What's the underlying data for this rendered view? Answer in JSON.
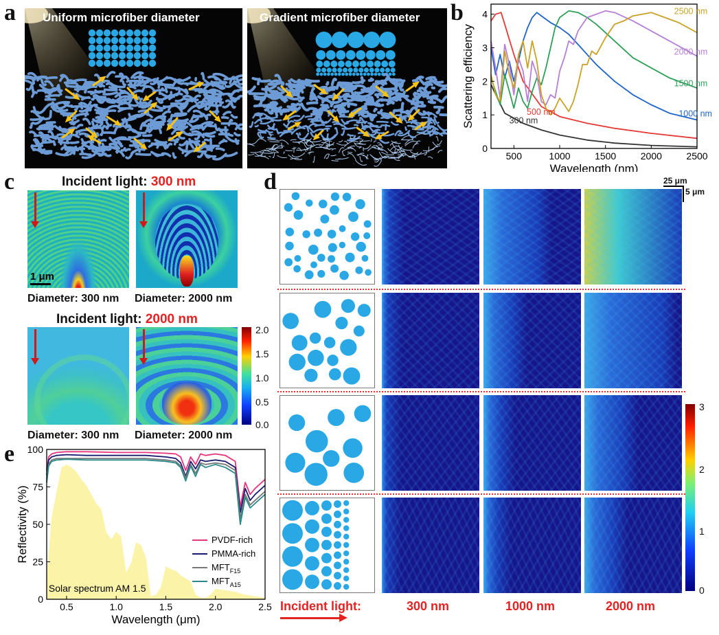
{
  "panel_labels": {
    "a": "a",
    "b": "b",
    "c": "c",
    "d": "d",
    "e": "e"
  },
  "panel_a": {
    "left_title": "Uniform microfiber diameter",
    "right_title": "Gradient microfiber diameter"
  },
  "panel_c": {
    "heading_top_prefix": "Incident light: ",
    "heading_top_value": "300 nm",
    "heading_bottom_prefix": "Incident light: ",
    "heading_bottom_value": "2000 nm",
    "captions": [
      "Diameter: 300 nm",
      "Diameter: 2000 nm",
      "Diameter: 300 nm",
      "Diameter: 2000 nm"
    ],
    "scale_bar": "1 μm",
    "colorbar_ticks": [
      "2.0",
      "1.5",
      "1.0",
      "0.5",
      "0.0"
    ]
  },
  "panel_d": {
    "scale_x": "25 μm",
    "scale_y": "5 μm",
    "footer_label": "Incident light:",
    "wavelengths": [
      "300 nm",
      "1000 nm",
      "2000 nm"
    ],
    "colorbar_ticks": [
      "3",
      "2",
      "1",
      "0"
    ]
  },
  "colors": {
    "accent_red": "#e52222",
    "field_dark": "#1f1f8f",
    "fiber_blue": "#2aa8e6"
  },
  "chart_data": [
    {
      "id": "b",
      "type": "line",
      "title": "",
      "xlabel": "Wavelength (nm)",
      "ylabel": "Scattering efficiency",
      "xlim": [
        250,
        2500
      ],
      "ylim": [
        0,
        4.3
      ],
      "xticks": [
        500,
        1000,
        1500,
        2000,
        2500
      ],
      "yticks": [
        0,
        1,
        2,
        3,
        4
      ],
      "series": [
        {
          "name": "300 nm",
          "color": "#333333",
          "x": [
            250,
            400,
            600,
            800,
            1000,
            1300,
            1600,
            2000,
            2500
          ],
          "y": [
            1.9,
            1.05,
            0.75,
            0.55,
            0.4,
            0.25,
            0.16,
            0.09,
            0.05
          ]
        },
        {
          "name": "500 nm",
          "color": "#e53935",
          "x": [
            250,
            300,
            360,
            400,
            500,
            600,
            800,
            1000,
            1300,
            1600,
            2000,
            2500
          ],
          "y": [
            3.8,
            4.0,
            4.05,
            3.7,
            2.8,
            2.0,
            1.25,
            0.95,
            0.75,
            0.6,
            0.45,
            0.3
          ]
        },
        {
          "name": "1000 nm",
          "color": "#1e64c8",
          "x": [
            250,
            300,
            350,
            400,
            450,
            500,
            550,
            600,
            650,
            700,
            750,
            800,
            900,
            1000,
            1100,
            1200,
            1300,
            1400,
            1600,
            1800,
            2000,
            2200,
            2500
          ],
          "y": [
            3.0,
            2.2,
            2.8,
            2.1,
            2.6,
            2.0,
            2.6,
            3.2,
            3.6,
            3.9,
            4.05,
            3.95,
            3.75,
            3.6,
            3.4,
            3.1,
            2.8,
            2.5,
            2.0,
            1.6,
            1.3,
            1.05,
            0.85
          ]
        },
        {
          "name": "1500 nm",
          "color": "#2e9e58",
          "x": [
            250,
            300,
            350,
            400,
            450,
            500,
            550,
            600,
            650,
            700,
            750,
            800,
            850,
            900,
            950,
            1000,
            1100,
            1200,
            1300,
            1400,
            1600,
            1800,
            2000,
            2200,
            2500
          ],
          "y": [
            2.1,
            1.7,
            1.3,
            2.2,
            1.7,
            1.2,
            1.8,
            1.4,
            1.2,
            1.7,
            2.1,
            1.9,
            2.4,
            3.0,
            3.6,
            3.9,
            4.1,
            4.05,
            3.9,
            3.7,
            3.2,
            2.7,
            2.4,
            2.1,
            1.8
          ]
        },
        {
          "name": "2000 nm",
          "color": "#b77fd6",
          "x": [
            250,
            300,
            350,
            400,
            450,
            500,
            550,
            600,
            650,
            700,
            750,
            800,
            850,
            900,
            950,
            1000,
            1050,
            1100,
            1150,
            1200,
            1300,
            1400,
            1500,
            1600,
            1800,
            2000,
            2200,
            2500
          ],
          "y": [
            3.2,
            2.4,
            1.5,
            3.1,
            2.5,
            1.6,
            2.7,
            2.3,
            1.4,
            2.6,
            2.2,
            1.4,
            1.3,
            1.6,
            1.5,
            2.3,
            2.7,
            3.2,
            3.1,
            3.5,
            3.9,
            4.0,
            4.1,
            4.05,
            3.8,
            3.5,
            3.2,
            2.75
          ]
        },
        {
          "name": "2500 nm",
          "color": "#c9a227",
          "x": [
            250,
            300,
            350,
            400,
            450,
            500,
            550,
            600,
            650,
            700,
            750,
            800,
            850,
            900,
            950,
            1000,
            1050,
            1100,
            1150,
            1200,
            1250,
            1300,
            1350,
            1400,
            1500,
            1600,
            1700,
            1800,
            1900,
            2000,
            2100,
            2200,
            2300,
            2400,
            2500
          ],
          "y": [
            2.2,
            1.6,
            1.4,
            2.9,
            2.2,
            1.8,
            2.8,
            3.2,
            2.4,
            3.2,
            2.6,
            1.6,
            1.2,
            1.0,
            1.2,
            1.5,
            1.3,
            1.1,
            1.4,
            1.9,
            2.5,
            2.5,
            2.9,
            2.8,
            3.3,
            3.7,
            3.8,
            3.95,
            4.0,
            4.05,
            3.95,
            3.85,
            3.75,
            3.6,
            3.45
          ]
        }
      ]
    },
    {
      "id": "e",
      "type": "line",
      "title": "",
      "xlabel": "Wavelength (μm)",
      "ylabel": "Reflectivity (%)",
      "xlim": [
        0.3,
        2.5
      ],
      "ylim": [
        0,
        100
      ],
      "xticks": [
        0.5,
        1.0,
        1.5,
        2.0,
        2.5
      ],
      "yticks": [
        0,
        25,
        50,
        75,
        100
      ],
      "area_label": "Solar spectrum AM 1.5",
      "area": {
        "x": [
          0.3,
          0.35,
          0.4,
          0.45,
          0.5,
          0.55,
          0.6,
          0.65,
          0.7,
          0.75,
          0.8,
          0.85,
          0.9,
          0.95,
          1.0,
          1.05,
          1.1,
          1.15,
          1.2,
          1.25,
          1.3,
          1.35,
          1.4,
          1.45,
          1.5,
          1.55,
          1.6,
          1.65,
          1.7,
          1.75,
          1.8,
          1.85,
          1.9,
          1.95,
          2.0,
          2.1,
          2.2,
          2.3,
          2.4,
          2.5
        ],
        "y": [
          15,
          55,
          72,
          88,
          90,
          88,
          85,
          80,
          76,
          70,
          64,
          60,
          45,
          40,
          45,
          42,
          18,
          24,
          38,
          36,
          28,
          2,
          3,
          8,
          22,
          20,
          19,
          16,
          14,
          12,
          3,
          1,
          1,
          3,
          7,
          6,
          5,
          3,
          2,
          1
        ]
      },
      "series": [
        {
          "name": "PVDF-rich",
          "color": "#e8337d",
          "x": [
            0.3,
            0.32,
            0.35,
            0.4,
            0.5,
            0.7,
            1.0,
            1.3,
            1.5,
            1.6,
            1.65,
            1.7,
            1.75,
            1.8,
            1.85,
            1.9,
            2.0,
            2.1,
            2.2,
            2.25,
            2.3,
            2.35,
            2.4,
            2.5
          ],
          "y": [
            86,
            95,
            97,
            98,
            98.5,
            98.5,
            98,
            98,
            97.5,
            97,
            95,
            86,
            95,
            90,
            97,
            96,
            97,
            96,
            92,
            62,
            78,
            70,
            74,
            80
          ]
        },
        {
          "name": "PMMA-rich",
          "color": "#1a1a6e",
          "x": [
            0.3,
            0.32,
            0.35,
            0.4,
            0.5,
            0.7,
            1.0,
            1.3,
            1.5,
            1.6,
            1.65,
            1.7,
            1.75,
            1.8,
            1.85,
            1.9,
            2.0,
            2.1,
            2.2,
            2.25,
            2.3,
            2.35,
            2.4,
            2.5
          ],
          "y": [
            83,
            93,
            95,
            96,
            96.5,
            96,
            96,
            96,
            95,
            94,
            91,
            82,
            92,
            87,
            93,
            92,
            93,
            92,
            88,
            58,
            74,
            66,
            70,
            76
          ]
        },
        {
          "name": "MFT_F15",
          "color": "#777777",
          "x": [
            0.3,
            0.32,
            0.35,
            0.4,
            0.5,
            0.7,
            1.0,
            1.3,
            1.5,
            1.6,
            1.65,
            1.7,
            1.75,
            1.8,
            1.85,
            1.9,
            2.0,
            2.1,
            2.2,
            2.25,
            2.3,
            2.35,
            2.4,
            2.5
          ],
          "y": [
            80,
            90,
            93,
            94,
            94,
            94,
            94,
            94,
            93,
            92,
            89,
            81,
            90,
            84,
            91,
            90,
            91,
            90,
            86,
            54,
            70,
            63,
            66,
            72
          ]
        },
        {
          "name": "MFT_A15",
          "color": "#2a8a8a",
          "x": [
            0.3,
            0.32,
            0.35,
            0.4,
            0.5,
            0.7,
            1.0,
            1.3,
            1.5,
            1.6,
            1.65,
            1.7,
            1.75,
            1.8,
            1.85,
            1.9,
            2.0,
            2.1,
            2.2,
            2.25,
            2.3,
            2.35,
            2.4,
            2.5
          ],
          "y": [
            78,
            89,
            92,
            93,
            93.5,
            93,
            93,
            93,
            92,
            91,
            88,
            79,
            89,
            82,
            90,
            88,
            90,
            88,
            84,
            50,
            68,
            61,
            64,
            70
          ]
        }
      ],
      "legend_labels": [
        {
          "main": "PVDF-rich",
          "sub": ""
        },
        {
          "main": "PMMA-rich",
          "sub": ""
        },
        {
          "main": "MFT",
          "sub": "F15"
        },
        {
          "main": "MFT",
          "sub": "A15"
        }
      ]
    }
  ]
}
